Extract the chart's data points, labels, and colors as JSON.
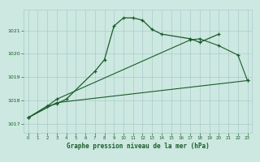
{
  "title": "Graphe pression niveau de la mer (hPa)",
  "bg_color": "#cce8e0",
  "grid_color": "#aacccc",
  "line_color": "#1a5c2a",
  "xlim": [
    -0.5,
    23.5
  ],
  "ylim": [
    1016.6,
    1021.9
  ],
  "yticks": [
    1017,
    1018,
    1019,
    1020,
    1021
  ],
  "xticks": [
    0,
    1,
    2,
    3,
    4,
    5,
    6,
    7,
    8,
    9,
    10,
    11,
    12,
    13,
    14,
    15,
    16,
    17,
    18,
    19,
    20,
    21,
    22,
    23
  ],
  "line1_x": [
    0,
    2,
    3,
    4,
    7,
    8,
    9,
    10,
    11,
    12,
    13,
    14,
    17,
    18,
    20
  ],
  "line1_y": [
    1017.25,
    1017.75,
    1017.85,
    1018.05,
    1019.25,
    1019.75,
    1021.2,
    1021.55,
    1021.55,
    1021.45,
    1021.05,
    1020.85,
    1020.65,
    1020.5,
    1020.85
  ],
  "line2_x": [
    0,
    2,
    3,
    17,
    18,
    20,
    22,
    23
  ],
  "line2_y": [
    1017.25,
    1017.75,
    1018.05,
    1020.6,
    1020.65,
    1020.35,
    1019.95,
    1018.85
  ],
  "line3_x": [
    0,
    3,
    23
  ],
  "line3_y": [
    1017.25,
    1017.9,
    1018.85
  ]
}
